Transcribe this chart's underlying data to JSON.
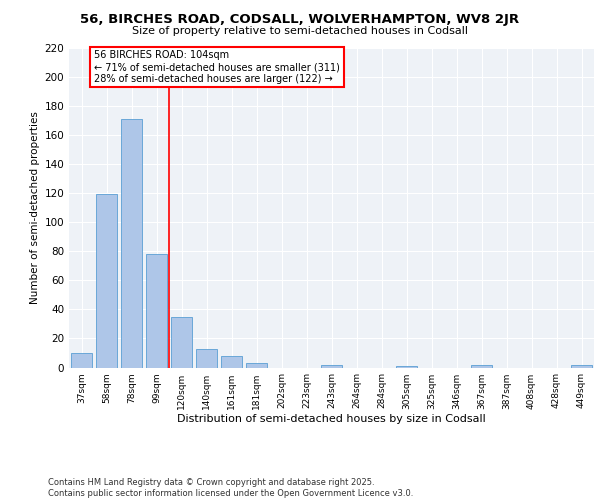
{
  "title1": "56, BIRCHES ROAD, CODSALL, WOLVERHAMPTON, WV8 2JR",
  "title2": "Size of property relative to semi-detached houses in Codsall",
  "xlabel": "Distribution of semi-detached houses by size in Codsall",
  "ylabel": "Number of semi-detached properties",
  "categories": [
    "37sqm",
    "58sqm",
    "78sqm",
    "99sqm",
    "120sqm",
    "140sqm",
    "161sqm",
    "181sqm",
    "202sqm",
    "223sqm",
    "243sqm",
    "264sqm",
    "284sqm",
    "305sqm",
    "325sqm",
    "346sqm",
    "367sqm",
    "387sqm",
    "408sqm",
    "428sqm",
    "449sqm"
  ],
  "values": [
    10,
    119,
    171,
    78,
    35,
    13,
    8,
    3,
    0,
    0,
    2,
    0,
    0,
    1,
    0,
    0,
    2,
    0,
    0,
    0,
    2
  ],
  "bar_color": "#aec6e8",
  "bar_edgecolor": "#5a9fd4",
  "vline_x_index": 3,
  "vline_color": "red",
  "annotation_title": "56 BIRCHES ROAD: 104sqm",
  "annotation_line1": "← 71% of semi-detached houses are smaller (311)",
  "annotation_line2": "28% of semi-detached houses are larger (122) →",
  "ylim": [
    0,
    220
  ],
  "yticks": [
    0,
    20,
    40,
    60,
    80,
    100,
    120,
    140,
    160,
    180,
    200,
    220
  ],
  "bg_color": "#eef2f7",
  "footer": "Contains HM Land Registry data © Crown copyright and database right 2025.\nContains public sector information licensed under the Open Government Licence v3.0."
}
